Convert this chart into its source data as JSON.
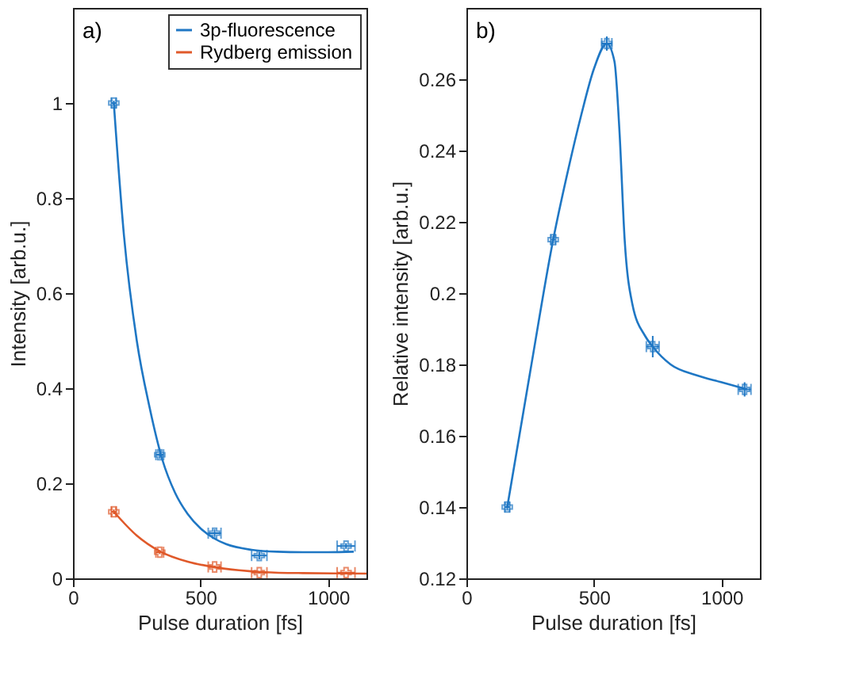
{
  "chart_data": [
    {
      "type": "scatter",
      "xlabel": "Pulse duration [fs]",
      "ylabel": "Intensity [arb.u.]",
      "xlim": [
        0,
        1150
      ],
      "ylim": [
        0,
        1.2
      ],
      "xticks": [
        0,
        500,
        1000
      ],
      "yticks": [
        0,
        0.2,
        0.4,
        0.6,
        0.8,
        1
      ],
      "grid": false,
      "legend": "top right",
      "annotations": [
        "a)"
      ],
      "series": [
        {
          "name": "3p-fluorescence",
          "marker": "cross",
          "color": "#1f77c4",
          "x": [
            160,
            340,
            555,
            730,
            1070
          ],
          "values": [
            1.0,
            0.26,
            0.095,
            0.048,
            0.068
          ],
          "errors": [
            0.005,
            0.008,
            0.008,
            0.008,
            0.006
          ],
          "xerrors": [
            10,
            15,
            25,
            30,
            35
          ]
        },
        {
          "name": "Rydberg emission",
          "marker": "cross",
          "color": "#e0592a",
          "x": [
            160,
            340,
            555,
            730,
            1070
          ],
          "values": [
            0.14,
            0.055,
            0.024,
            0.012,
            0.012
          ],
          "errors": [
            0.005,
            0.004,
            0.003,
            0.002,
            0.002
          ],
          "xerrors": [
            10,
            15,
            25,
            30,
            35
          ]
        },
        {
          "type": "line",
          "marker": "none",
          "color": "#1f77c4",
          "line_style": "solid",
          "x": [
            160,
            200,
            250,
            300,
            350,
            400,
            450,
            500,
            550,
            600,
            700,
            800,
            900,
            1000,
            1100
          ],
          "values": [
            1.0,
            0.72,
            0.5,
            0.36,
            0.25,
            0.18,
            0.135,
            0.105,
            0.085,
            0.072,
            0.06,
            0.056,
            0.055,
            0.055,
            0.056
          ]
        },
        {
          "type": "line",
          "marker": "none",
          "color": "#e0592a",
          "line_style": "solid",
          "x": [
            160,
            250,
            340,
            450,
            550,
            650,
            750,
            900,
            1150
          ],
          "values": [
            0.14,
            0.09,
            0.057,
            0.035,
            0.024,
            0.017,
            0.013,
            0.011,
            0.01
          ]
        }
      ]
    },
    {
      "type": "scatter",
      "xlabel": "Pulse duration [fs]",
      "ylabel": "Relative intensity [arb.u.]",
      "xlim": [
        0,
        1150
      ],
      "ylim": [
        0.12,
        0.28
      ],
      "xticks": [
        0,
        500,
        1000
      ],
      "yticks": [
        0.12,
        0.14,
        0.16,
        0.18,
        0.2,
        0.22,
        0.24,
        0.26
      ],
      "grid": false,
      "annotations": [
        "b)"
      ],
      "series": [
        {
          "marker": "cross",
          "color": "#1f77c4",
          "x": [
            160,
            340,
            550,
            730,
            1090
          ],
          "values": [
            0.14,
            0.215,
            0.27,
            0.185,
            0.173
          ],
          "errors": [
            0.001,
            0.001,
            0.002,
            0.003,
            0.002
          ],
          "xerrors": [
            10,
            10,
            20,
            25,
            25
          ]
        },
        {
          "type": "line",
          "marker": "none",
          "color": "#1f77c4",
          "line_style": "solid",
          "x": [
            160,
            250,
            340,
            400,
            450,
            500,
            550,
            580,
            600,
            620,
            650,
            700,
            730,
            800,
            900,
            1000,
            1100
          ],
          "values": [
            0.14,
            0.178,
            0.215,
            0.235,
            0.25,
            0.263,
            0.27,
            0.265,
            0.245,
            0.215,
            0.197,
            0.188,
            0.185,
            0.18,
            0.177,
            0.175,
            0.173
          ]
        }
      ]
    }
  ]
}
